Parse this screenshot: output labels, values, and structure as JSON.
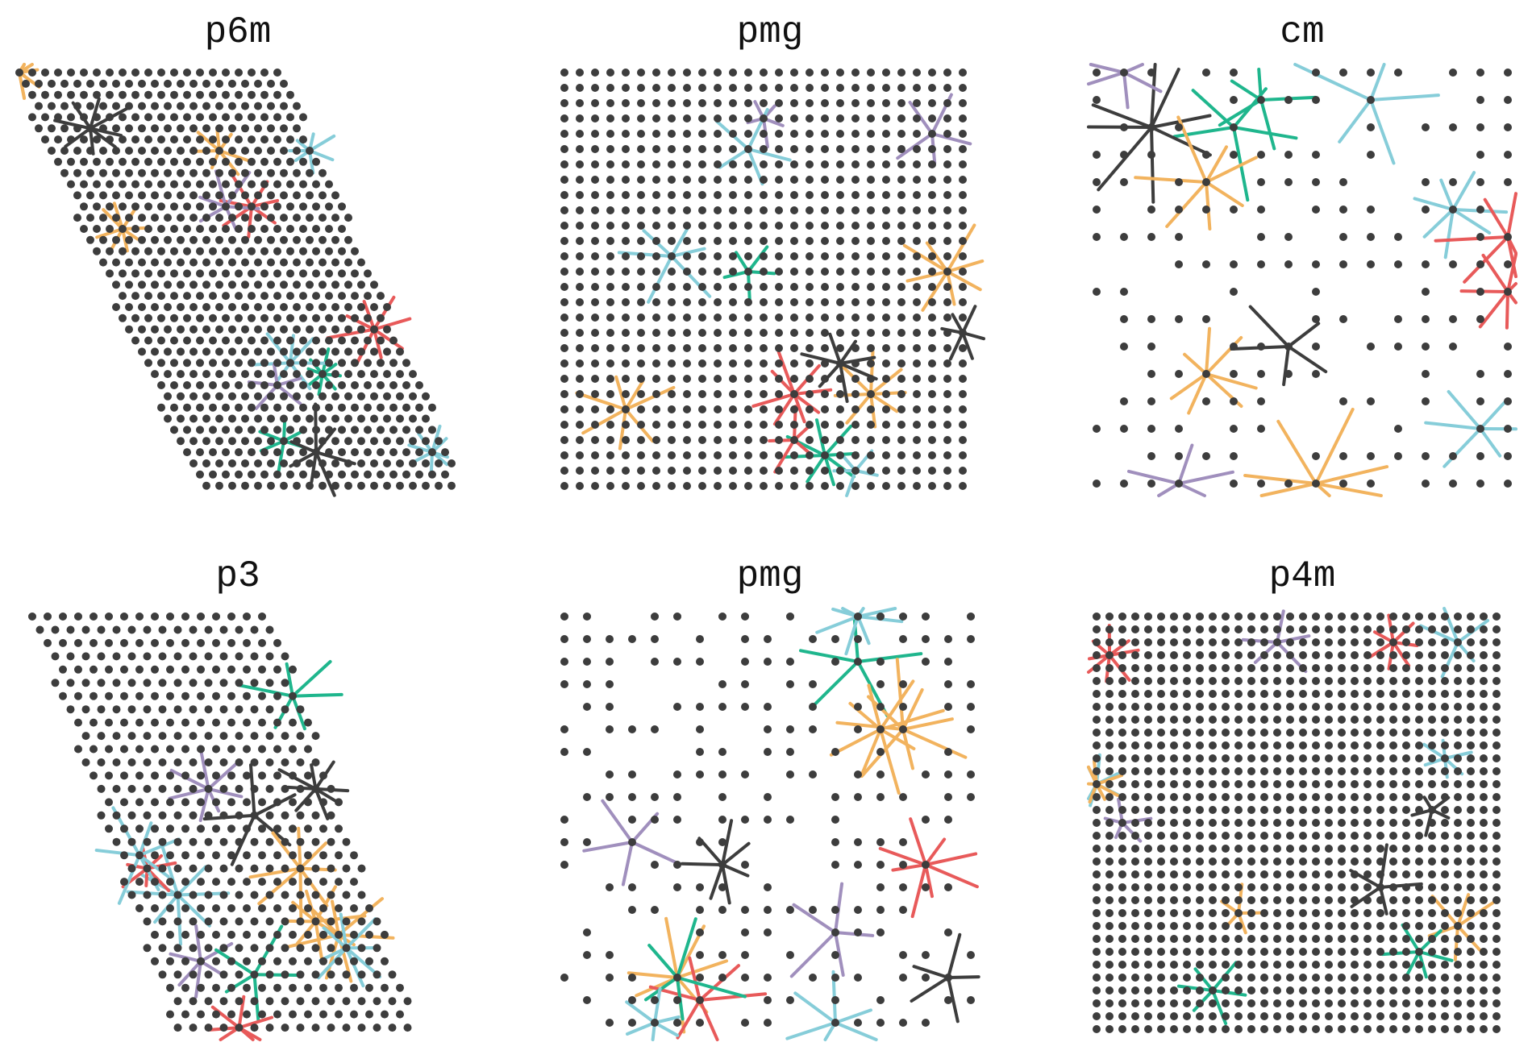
{
  "panels": [
    {
      "title": "p6m",
      "lattice": "hex",
      "dot_density": "very-dense",
      "outline": "rhombus"
    },
    {
      "title": "pmg",
      "lattice": "rect",
      "dot_density": "dense",
      "outline": "square"
    },
    {
      "title": "cm",
      "lattice": "rect",
      "dot_density": "sparse",
      "outline": "square"
    },
    {
      "title": "p3",
      "lattice": "hex",
      "dot_density": "dense",
      "outline": "parallelogram"
    },
    {
      "title": "pmg",
      "lattice": "rect",
      "dot_density": "medium",
      "outline": "square"
    },
    {
      "title": "p4m",
      "lattice": "rect",
      "dot_density": "very-dense",
      "outline": "square"
    }
  ],
  "colors": {
    "dot": "#3d3d3d",
    "star_palette": [
      "#f2b35e",
      "#86cdd9",
      "#1fb68d",
      "#e85a5a",
      "#a08fbd",
      "#3d3d3d"
    ]
  }
}
